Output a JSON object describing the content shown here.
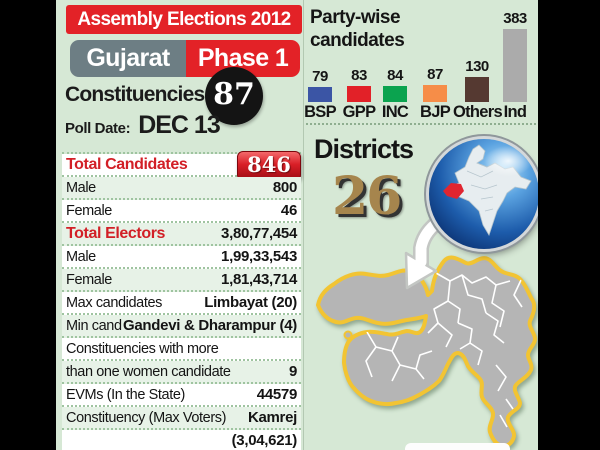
{
  "page": {
    "outer_bg": "#000000",
    "panel_bg": "#d6e8d5"
  },
  "header": {
    "banner": "Assembly Elections 2012",
    "state": "Gujarat",
    "phase": "Phase 1",
    "constituencies_label": "Constituencies",
    "constituencies_value": "87",
    "poll_date_label": "Poll Date:",
    "poll_date_value": "DEC 13"
  },
  "chart_data": {
    "type": "bar",
    "title": "Party-wise candidates",
    "title_lines": [
      "Party-wise",
      "candidates"
    ],
    "categories": [
      "BSP",
      "GPP",
      "INC",
      "BJP",
      "Others",
      "Ind"
    ],
    "values": [
      79,
      83,
      84,
      87,
      130,
      383
    ],
    "bar_colors": [
      "#3b55a5",
      "#e22128",
      "#0ba34f",
      "#f68d48",
      "#553931",
      "#ababab"
    ],
    "value_labels_shown": true,
    "axes_shown": false,
    "grid": false,
    "ylim": [
      0,
      400
    ]
  },
  "stats_table": {
    "rows": [
      {
        "label": "Total Candidates",
        "value": "846",
        "emphasis": "red",
        "badge": true
      },
      {
        "label": "Male",
        "value": "800"
      },
      {
        "label": "Female",
        "value": "46"
      },
      {
        "label": "Total Electors",
        "value": "3,80,77,454",
        "emphasis": "red"
      },
      {
        "label": "Male",
        "value": "1,99,33,543"
      },
      {
        "label": "Female",
        "value": "1,81,43,714"
      },
      {
        "label": "Max candidates",
        "value": "Limbayat (20)"
      },
      {
        "label": "Min cand",
        "value": "Gandevi & Dharampur (4)"
      },
      {
        "label": "Constituencies with more",
        "value": ""
      },
      {
        "label": "than one women candidate",
        "value": "9"
      },
      {
        "label": "EVMs (In the State)",
        "value": "44579"
      },
      {
        "label": "Constituency (Max Voters)",
        "value": "Kamrej"
      },
      {
        "label": "",
        "value": "(3,04,621)"
      }
    ]
  },
  "districts": {
    "label": "Districts",
    "value": "26"
  },
  "colors": {
    "accent_red": "#e32227",
    "slate_grey": "#6d7e84",
    "table_red": "#d21f26",
    "row_tint": "#e7f2e7",
    "map_fill": "#b5b5b5",
    "map_outline_gold": "#f2c433",
    "districts_number_gold": "#a6854d",
    "globe_blue": "#1d5cab",
    "gujarat_highlight_red": "#e02530"
  }
}
